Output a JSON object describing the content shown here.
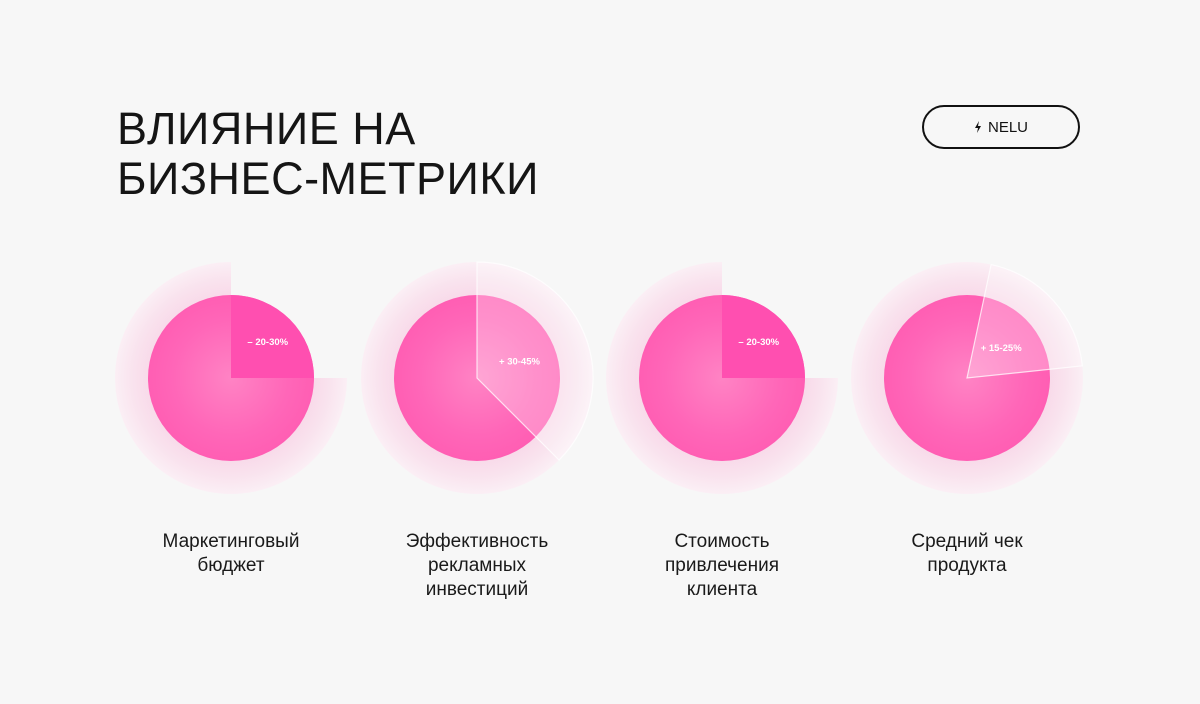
{
  "title": {
    "line1": "ВЛИЯНИЕ НА",
    "line2": "БИЗНЕС-МЕТРИКИ"
  },
  "brand": {
    "icon": "lightning-icon",
    "label": "NELU"
  },
  "colors": {
    "background": "#f7f7f7",
    "accent": "#ff4fb0",
    "halo": "#f5c6dd",
    "text": "#151515"
  },
  "chart_data": [
    {
      "type": "pie",
      "slice_label": "– 20-30%",
      "slice_range": [
        20,
        30
      ],
      "direction": "decrease",
      "label_lines": [
        "Маркетинговый",
        "бюджет"
      ]
    },
    {
      "type": "pie",
      "slice_label": "+ 30-45%",
      "slice_range": [
        30,
        45
      ],
      "direction": "increase",
      "label_lines": [
        "Эффективность",
        "рекламных",
        "инвестиций"
      ]
    },
    {
      "type": "pie",
      "slice_label": "– 20-30%",
      "slice_range": [
        20,
        30
      ],
      "direction": "decrease",
      "label_lines": [
        "Стоимость",
        "привлечения",
        "клиента"
      ]
    },
    {
      "type": "pie",
      "slice_label": "+ 15-25%",
      "slice_range": [
        15,
        25
      ],
      "direction": "increase",
      "label_lines": [
        "Средний чек",
        "продукта"
      ]
    }
  ]
}
